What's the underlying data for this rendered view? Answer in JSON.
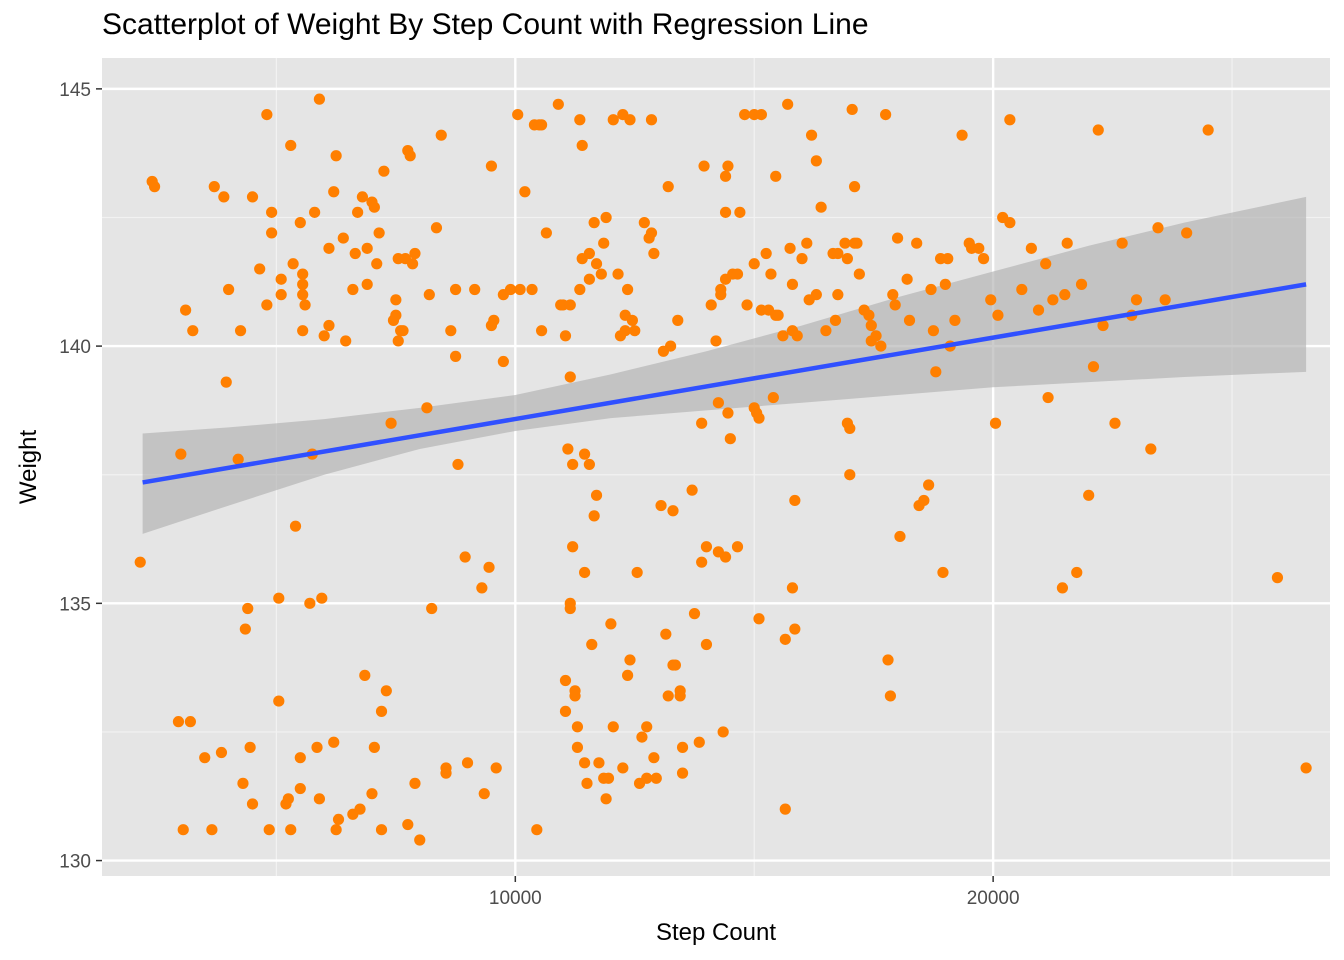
{
  "chart_data": {
    "type": "scatter",
    "title": "Scatterplot of Weight By Step Count with Regression Line",
    "xlabel": "Step Count",
    "ylabel": "Weight",
    "xlim": [
      1350,
      27050
    ],
    "ylim": [
      129.7,
      145.6
    ],
    "xticks": [
      10000,
      20000
    ],
    "yticks": [
      130,
      135,
      140,
      145
    ],
    "x_minor": [
      5000,
      15000,
      25000
    ],
    "y_minor": [
      132.5,
      137.5,
      142.5
    ],
    "grid": true,
    "panel_background": "#e5e5e5",
    "point_color": "#ff7f00",
    "line_color": "#3050ff",
    "ribbon_color": "#b0b0b0",
    "regression": {
      "x": [
        2200,
        26550
      ],
      "y": [
        137.35,
        141.2
      ],
      "ci_lower": [
        136.35,
        139.5
      ],
      "ci_upper": [
        138.3,
        142.9
      ]
    },
    "ribbon_profile": [
      {
        "x": 2200,
        "lo": 136.35,
        "hi": 138.3
      },
      {
        "x": 4000,
        "lo": 136.9,
        "hi": 138.42
      },
      {
        "x": 6000,
        "lo": 137.5,
        "hi": 138.58
      },
      {
        "x": 8000,
        "lo": 138.0,
        "hi": 138.8
      },
      {
        "x": 10000,
        "lo": 138.35,
        "hi": 139.05
      },
      {
        "x": 12000,
        "lo": 138.6,
        "hi": 139.45
      },
      {
        "x": 14000,
        "lo": 138.75,
        "hi": 139.9
      },
      {
        "x": 16000,
        "lo": 138.9,
        "hi": 140.4
      },
      {
        "x": 18000,
        "lo": 139.05,
        "hi": 140.95
      },
      {
        "x": 20000,
        "lo": 139.2,
        "hi": 141.45
      },
      {
        "x": 22000,
        "lo": 139.3,
        "hi": 141.95
      },
      {
        "x": 24000,
        "lo": 139.4,
        "hi": 142.4
      },
      {
        "x": 26550,
        "lo": 139.5,
        "hi": 142.9
      }
    ],
    "points": [
      [
        2150,
        135.8
      ],
      [
        2400,
        143.2
      ],
      [
        2450,
        143.1
      ],
      [
        3000,
        137.9
      ],
      [
        3050,
        130.6
      ],
      [
        3100,
        140.7
      ],
      [
        3200,
        132.7
      ],
      [
        2950,
        132.7
      ],
      [
        3250,
        140.3
      ],
      [
        3500,
        132.0
      ],
      [
        3700,
        143.1
      ],
      [
        3650,
        130.6
      ],
      [
        3850,
        132.1
      ],
      [
        3900,
        142.9
      ],
      [
        4000,
        141.1
      ],
      [
        3950,
        139.3
      ],
      [
        4250,
        140.3
      ],
      [
        4200,
        137.8
      ],
      [
        4300,
        131.5
      ],
      [
        4350,
        134.5
      ],
      [
        4500,
        142.9
      ],
      [
        4400,
        134.9
      ],
      [
        4450,
        132.2
      ],
      [
        4500,
        131.1
      ],
      [
        4650,
        141.5
      ],
      [
        4800,
        144.5
      ],
      [
        4850,
        130.6
      ],
      [
        4800,
        140.8
      ],
      [
        4900,
        142.2
      ],
      [
        4900,
        142.6
      ],
      [
        5050,
        135.1
      ],
      [
        5100,
        141.3
      ],
      [
        5050,
        133.1
      ],
      [
        5100,
        141.0
      ],
      [
        5200,
        131.1
      ],
      [
        5250,
        131.2
      ],
      [
        5300,
        143.9
      ],
      [
        5350,
        141.6
      ],
      [
        5400,
        136.5
      ],
      [
        5300,
        130.6
      ],
      [
        5500,
        132.0
      ],
      [
        5500,
        131.4
      ],
      [
        5500,
        142.4
      ],
      [
        5550,
        141.4
      ],
      [
        5550,
        140.3
      ],
      [
        5550,
        141.2
      ],
      [
        5550,
        141.0
      ],
      [
        5600,
        140.8
      ],
      [
        5700,
        135.0
      ],
      [
        5800,
        142.6
      ],
      [
        5750,
        137.9
      ],
      [
        5850,
        132.2
      ],
      [
        5900,
        131.2
      ],
      [
        5900,
        144.8
      ],
      [
        5950,
        135.1
      ],
      [
        6000,
        140.2
      ],
      [
        6100,
        141.9
      ],
      [
        6100,
        140.4
      ],
      [
        6200,
        143.0
      ],
      [
        6250,
        143.7
      ],
      [
        6200,
        132.3
      ],
      [
        6250,
        130.6
      ],
      [
        6300,
        130.8
      ],
      [
        6400,
        142.1
      ],
      [
        6450,
        140.1
      ],
      [
        6600,
        130.9
      ],
      [
        6600,
        141.1
      ],
      [
        6650,
        141.8
      ],
      [
        6700,
        142.6
      ],
      [
        6800,
        142.9
      ],
      [
        6750,
        131.0
      ],
      [
        6900,
        141.9
      ],
      [
        6850,
        133.6
      ],
      [
        6900,
        141.2
      ],
      [
        7000,
        142.8
      ],
      [
        7050,
        142.7
      ],
      [
        7000,
        131.3
      ],
      [
        7050,
        132.2
      ],
      [
        7100,
        141.6
      ],
      [
        7150,
        142.2
      ],
      [
        7200,
        132.9
      ],
      [
        7200,
        130.6
      ],
      [
        7250,
        143.4
      ],
      [
        7300,
        133.3
      ],
      [
        7400,
        138.5
      ],
      [
        7450,
        140.5
      ],
      [
        7500,
        140.9
      ],
      [
        7500,
        140.6
      ],
      [
        7550,
        141.7
      ],
      [
        7550,
        140.1
      ],
      [
        7600,
        140.3
      ],
      [
        7650,
        140.3
      ],
      [
        7750,
        143.8
      ],
      [
        7700,
        141.7
      ],
      [
        7750,
        130.7
      ],
      [
        7850,
        141.6
      ],
      [
        7800,
        143.7
      ],
      [
        7900,
        131.5
      ],
      [
        7900,
        141.8
      ],
      [
        8000,
        130.4
      ],
      [
        8150,
        138.8
      ],
      [
        8200,
        141.0
      ],
      [
        8250,
        134.9
      ],
      [
        8350,
        142.3
      ],
      [
        8450,
        144.1
      ],
      [
        8550,
        131.7
      ],
      [
        8550,
        131.8
      ],
      [
        8650,
        140.3
      ],
      [
        8750,
        139.8
      ],
      [
        8750,
        141.1
      ],
      [
        8800,
        137.7
      ],
      [
        8950,
        135.9
      ],
      [
        9000,
        131.9
      ],
      [
        9150,
        141.1
      ],
      [
        9300,
        135.3
      ],
      [
        9350,
        131.3
      ],
      [
        9450,
        135.7
      ],
      [
        9500,
        143.5
      ],
      [
        9500,
        140.4
      ],
      [
        9550,
        140.5
      ],
      [
        9600,
        131.8
      ],
      [
        9750,
        139.7
      ],
      [
        9750,
        141.0
      ],
      [
        9900,
        141.1
      ],
      [
        10050,
        144.5
      ],
      [
        10100,
        141.1
      ],
      [
        10200,
        143.0
      ],
      [
        10350,
        141.1
      ],
      [
        10400,
        144.3
      ],
      [
        10450,
        130.6
      ],
      [
        10500,
        144.3
      ],
      [
        10550,
        140.3
      ],
      [
        10550,
        144.3
      ],
      [
        10650,
        142.2
      ],
      [
        10900,
        144.7
      ],
      [
        10950,
        140.8
      ],
      [
        11000,
        140.8
      ],
      [
        11050,
        133.5
      ],
      [
        11050,
        132.9
      ],
      [
        11050,
        140.2
      ],
      [
        11100,
        138.0
      ],
      [
        11150,
        139.4
      ],
      [
        11150,
        140.8
      ],
      [
        11150,
        134.9
      ],
      [
        11150,
        135.0
      ],
      [
        11200,
        137.7
      ],
      [
        11200,
        136.1
      ],
      [
        11250,
        133.3
      ],
      [
        11250,
        133.2
      ],
      [
        11300,
        132.6
      ],
      [
        11300,
        132.2
      ],
      [
        11350,
        141.1
      ],
      [
        11350,
        144.4
      ],
      [
        11400,
        143.9
      ],
      [
        11400,
        141.7
      ],
      [
        11450,
        135.6
      ],
      [
        11450,
        137.9
      ],
      [
        11450,
        131.9
      ],
      [
        11500,
        131.5
      ],
      [
        11550,
        141.3
      ],
      [
        11550,
        141.8
      ],
      [
        11550,
        137.7
      ],
      [
        11600,
        134.2
      ],
      [
        11650,
        142.4
      ],
      [
        11650,
        136.7
      ],
      [
        11700,
        137.1
      ],
      [
        11700,
        141.6
      ],
      [
        11750,
        131.9
      ],
      [
        11800,
        141.4
      ],
      [
        11850,
        142.0
      ],
      [
        11850,
        131.6
      ],
      [
        11900,
        131.2
      ],
      [
        11900,
        142.5
      ],
      [
        11950,
        131.6
      ],
      [
        12000,
        134.6
      ],
      [
        12050,
        132.6
      ],
      [
        12050,
        144.4
      ],
      [
        12150,
        141.4
      ],
      [
        12200,
        140.2
      ],
      [
        12250,
        131.8
      ],
      [
        12250,
        144.5
      ],
      [
        12300,
        140.3
      ],
      [
        12300,
        140.6
      ],
      [
        12350,
        133.6
      ],
      [
        12350,
        141.1
      ],
      [
        12400,
        133.9
      ],
      [
        12400,
        144.4
      ],
      [
        12450,
        140.5
      ],
      [
        12500,
        140.3
      ],
      [
        12550,
        135.6
      ],
      [
        12600,
        131.5
      ],
      [
        12650,
        132.4
      ],
      [
        12700,
        142.4
      ],
      [
        12750,
        132.6
      ],
      [
        12750,
        131.6
      ],
      [
        12800,
        142.1
      ],
      [
        12850,
        142.2
      ],
      [
        12850,
        144.4
      ],
      [
        12900,
        132.0
      ],
      [
        12900,
        141.8
      ],
      [
        12950,
        131.6
      ],
      [
        13050,
        136.9
      ],
      [
        13100,
        139.9
      ],
      [
        13150,
        134.4
      ],
      [
        13200,
        133.2
      ],
      [
        13200,
        143.1
      ],
      [
        13250,
        140.0
      ],
      [
        13300,
        133.8
      ],
      [
        13300,
        136.8
      ],
      [
        13350,
        133.8
      ],
      [
        13400,
        140.5
      ],
      [
        13450,
        133.2
      ],
      [
        13450,
        133.3
      ],
      [
        13500,
        131.7
      ],
      [
        13500,
        132.2
      ],
      [
        13700,
        137.2
      ],
      [
        13750,
        134.8
      ],
      [
        13850,
        132.3
      ],
      [
        13900,
        135.8
      ],
      [
        13900,
        138.5
      ],
      [
        13950,
        143.5
      ],
      [
        14000,
        136.1
      ],
      [
        14000,
        134.2
      ],
      [
        14100,
        140.8
      ],
      [
        14200,
        140.1
      ],
      [
        14250,
        138.9
      ],
      [
        14250,
        136.0
      ],
      [
        14300,
        141.0
      ],
      [
        14300,
        141.1
      ],
      [
        14350,
        132.5
      ],
      [
        14400,
        141.3
      ],
      [
        14400,
        135.9
      ],
      [
        14400,
        143.3
      ],
      [
        14400,
        142.6
      ],
      [
        14450,
        138.7
      ],
      [
        14450,
        143.5
      ],
      [
        14500,
        138.2
      ],
      [
        14550,
        141.4
      ],
      [
        14650,
        136.1
      ],
      [
        14650,
        141.4
      ],
      [
        14700,
        142.6
      ],
      [
        14800,
        144.5
      ],
      [
        14850,
        140.8
      ],
      [
        15000,
        141.6
      ],
      [
        15000,
        138.8
      ],
      [
        15000,
        144.5
      ],
      [
        15050,
        138.7
      ],
      [
        15100,
        138.6
      ],
      [
        15100,
        134.7
      ],
      [
        15150,
        140.7
      ],
      [
        15150,
        144.5
      ],
      [
        15250,
        141.8
      ],
      [
        15300,
        140.7
      ],
      [
        15350,
        141.4
      ],
      [
        15400,
        139.0
      ],
      [
        15450,
        143.3
      ],
      [
        15450,
        140.6
      ],
      [
        15500,
        140.6
      ],
      [
        15600,
        140.2
      ],
      [
        15650,
        131.0
      ],
      [
        15650,
        134.3
      ],
      [
        15700,
        144.7
      ],
      [
        15750,
        141.9
      ],
      [
        15800,
        141.2
      ],
      [
        15800,
        140.3
      ],
      [
        15800,
        135.3
      ],
      [
        15850,
        134.5
      ],
      [
        15850,
        137.0
      ],
      [
        15900,
        140.2
      ],
      [
        16000,
        141.7
      ],
      [
        16100,
        142.0
      ],
      [
        16150,
        140.9
      ],
      [
        16200,
        144.1
      ],
      [
        16300,
        143.6
      ],
      [
        16300,
        141.0
      ],
      [
        16400,
        142.7
      ],
      [
        16500,
        140.3
      ],
      [
        16650,
        141.8
      ],
      [
        16700,
        140.5
      ],
      [
        16750,
        141.0
      ],
      [
        16750,
        141.8
      ],
      [
        16900,
        142.0
      ],
      [
        16950,
        141.7
      ],
      [
        16950,
        138.5
      ],
      [
        17000,
        137.5
      ],
      [
        17000,
        138.4
      ],
      [
        17050,
        144.6
      ],
      [
        17100,
        142.0
      ],
      [
        17100,
        143.1
      ],
      [
        17150,
        142.0
      ],
      [
        17200,
        141.4
      ],
      [
        17300,
        140.7
      ],
      [
        17400,
        140.6
      ],
      [
        17450,
        140.1
      ],
      [
        17450,
        140.4
      ],
      [
        17550,
        140.2
      ],
      [
        17650,
        140.0
      ],
      [
        17750,
        144.5
      ],
      [
        17800,
        133.9
      ],
      [
        17850,
        133.2
      ],
      [
        17900,
        141.0
      ],
      [
        17950,
        140.8
      ],
      [
        18000,
        142.1
      ],
      [
        18050,
        136.3
      ],
      [
        18200,
        141.3
      ],
      [
        18250,
        140.5
      ],
      [
        18400,
        142.0
      ],
      [
        18450,
        136.9
      ],
      [
        18550,
        137.0
      ],
      [
        18650,
        137.3
      ],
      [
        18700,
        141.1
      ],
      [
        18750,
        140.3
      ],
      [
        18800,
        139.5
      ],
      [
        18900,
        141.7
      ],
      [
        18950,
        135.6
      ],
      [
        19000,
        141.2
      ],
      [
        19050,
        141.7
      ],
      [
        19100,
        140.0
      ],
      [
        19200,
        140.5
      ],
      [
        19350,
        144.1
      ],
      [
        19500,
        142.0
      ],
      [
        19550,
        141.9
      ],
      [
        19700,
        141.9
      ],
      [
        19800,
        141.7
      ],
      [
        19950,
        140.9
      ],
      [
        20050,
        138.5
      ],
      [
        20100,
        140.6
      ],
      [
        20200,
        142.5
      ],
      [
        20350,
        144.4
      ],
      [
        20350,
        142.4
      ],
      [
        20600,
        141.1
      ],
      [
        20800,
        141.9
      ],
      [
        20950,
        140.7
      ],
      [
        21100,
        141.6
      ],
      [
        21150,
        139.0
      ],
      [
        21250,
        140.9
      ],
      [
        21450,
        135.3
      ],
      [
        21500,
        141.0
      ],
      [
        21550,
        142.0
      ],
      [
        21750,
        135.6
      ],
      [
        21850,
        141.2
      ],
      [
        22000,
        137.1
      ],
      [
        22100,
        139.6
      ],
      [
        22200,
        144.2
      ],
      [
        22300,
        140.4
      ],
      [
        22550,
        138.5
      ],
      [
        22700,
        142.0
      ],
      [
        22900,
        140.6
      ],
      [
        23000,
        140.9
      ],
      [
        23300,
        138.0
      ],
      [
        23450,
        142.3
      ],
      [
        23600,
        140.9
      ],
      [
        24050,
        142.2
      ],
      [
        24500,
        144.2
      ],
      [
        25950,
        135.5
      ],
      [
        26550,
        131.8
      ]
    ]
  }
}
